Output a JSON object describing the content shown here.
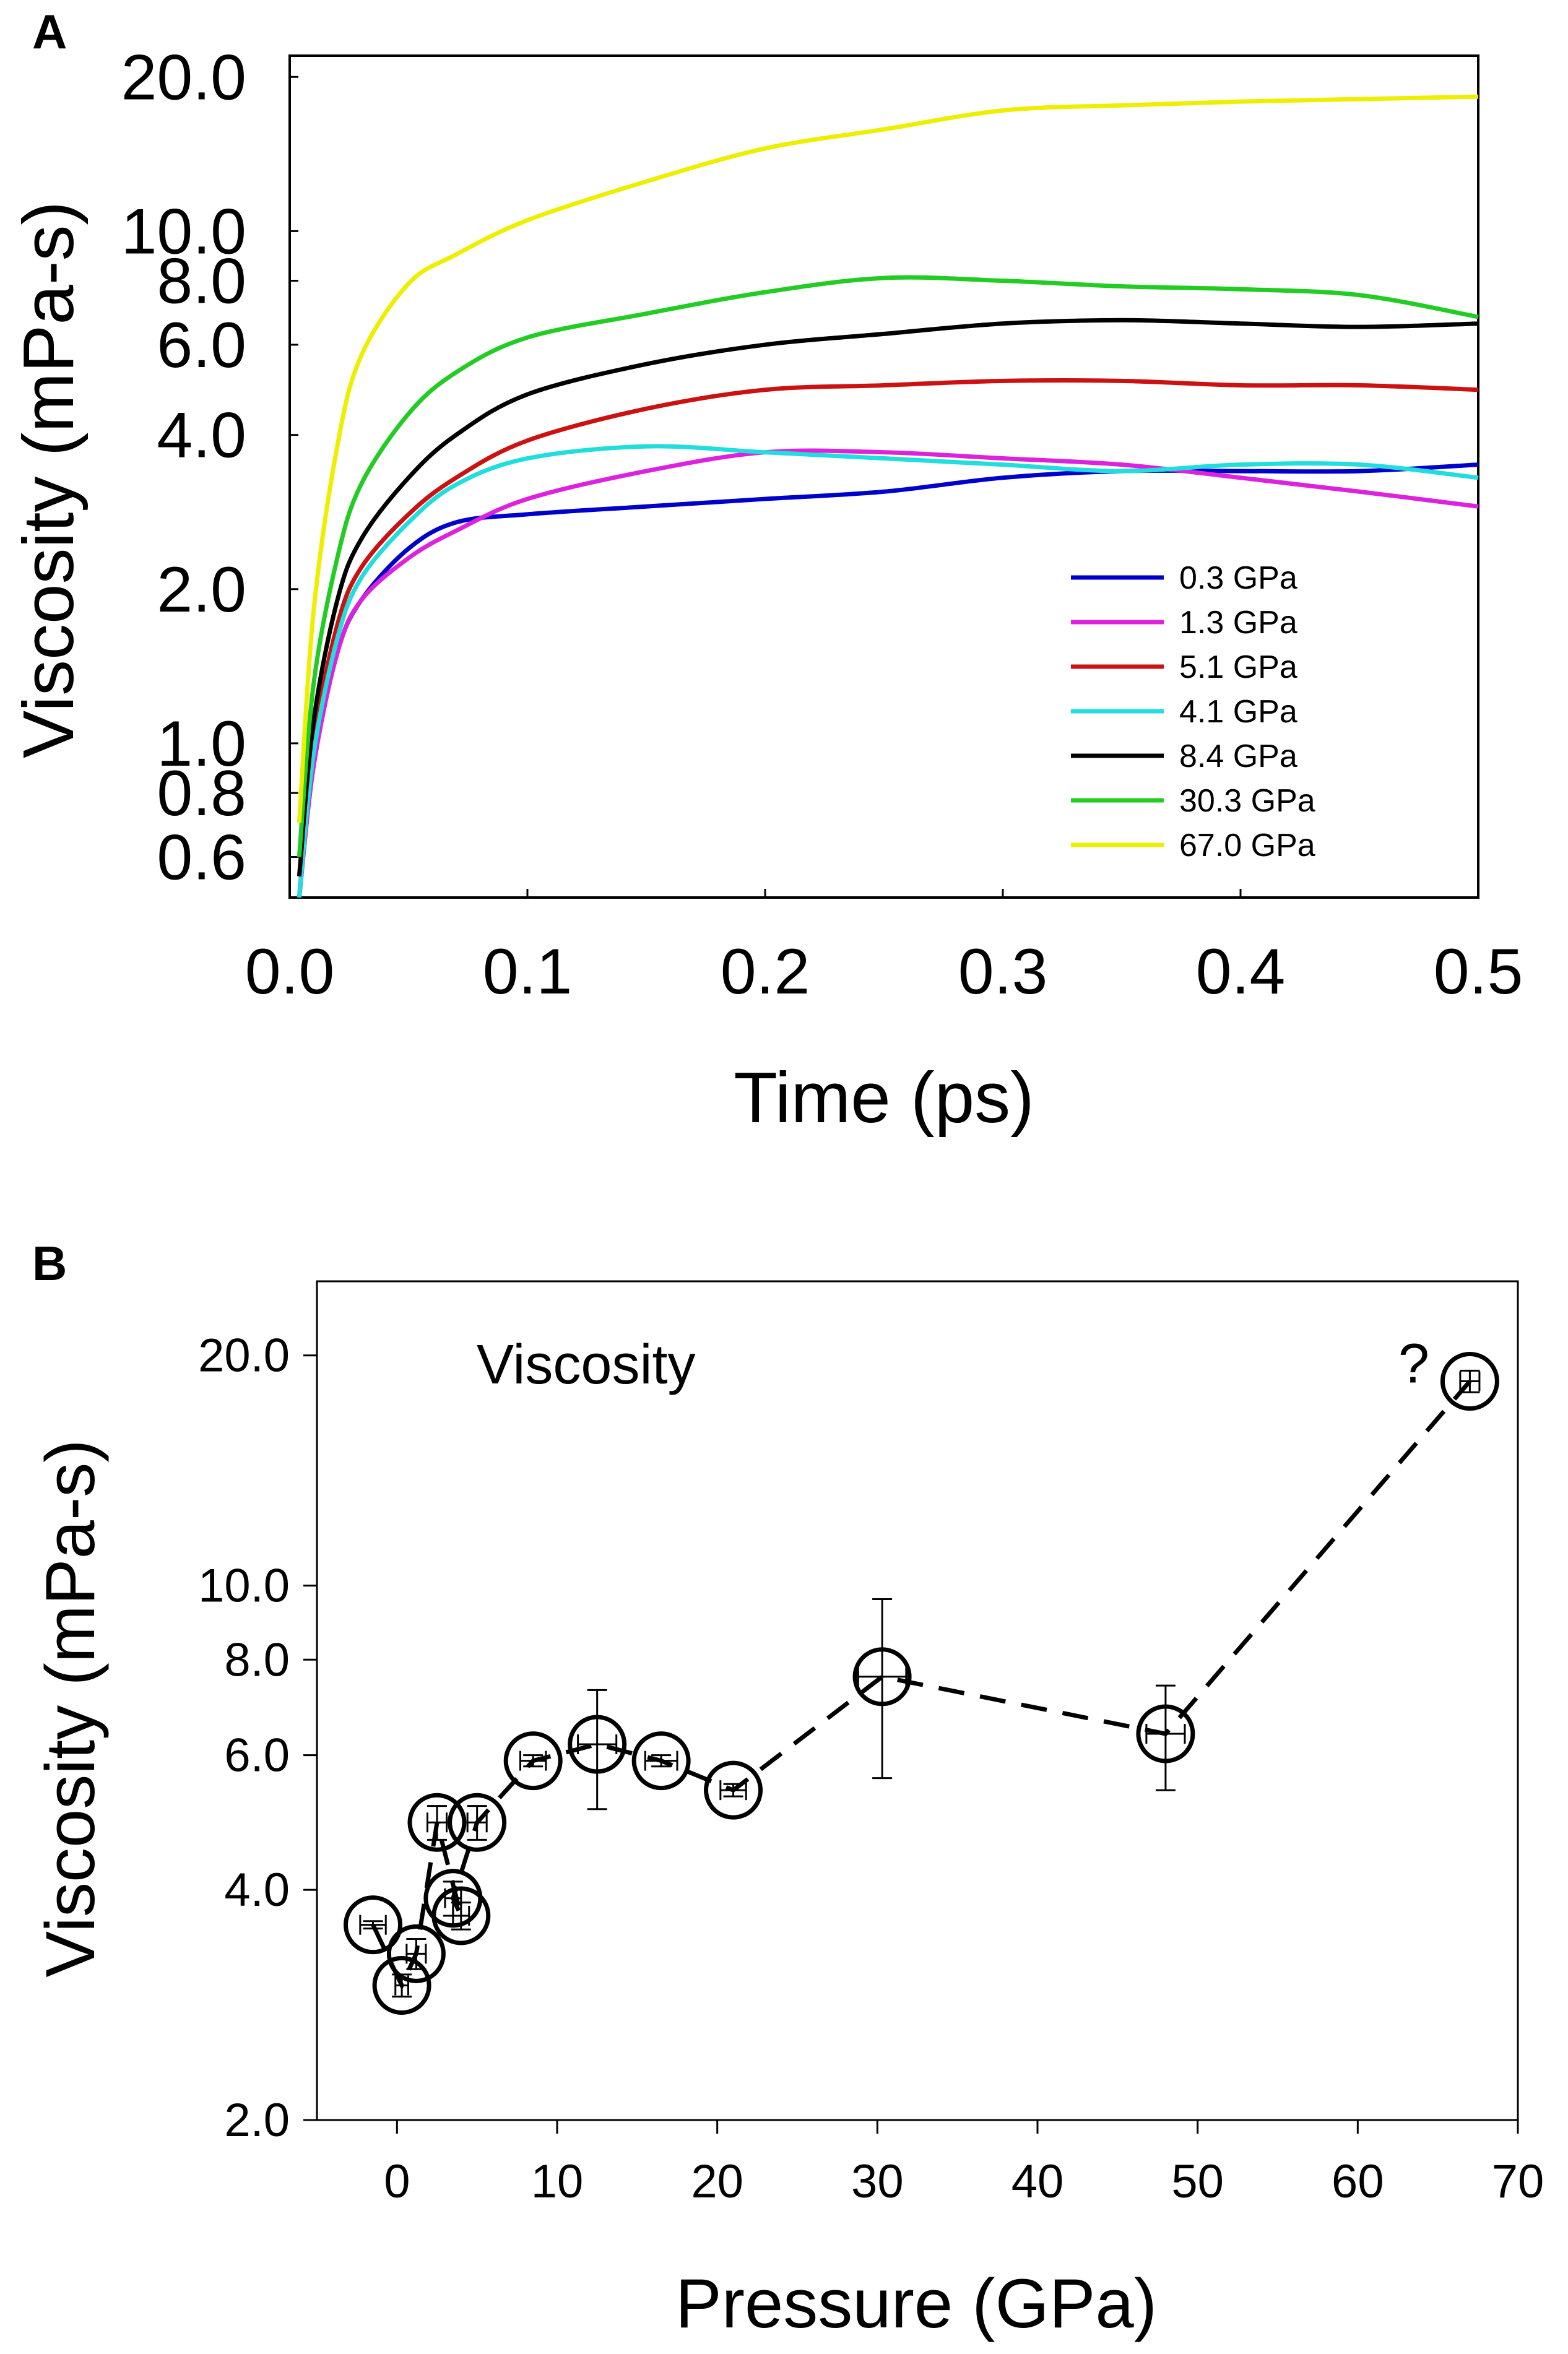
{
  "chart_data": [
    {
      "type": "line",
      "panel_label": "A",
      "xlabel": "Time (ps)",
      "ylabel": "Viscosity (mPa-s)",
      "xlim": [
        0,
        0.5
      ],
      "ylim": [
        0.5,
        22
      ],
      "yscale": "log",
      "xticks": [
        {
          "value": 0.0,
          "label": "0.0"
        },
        {
          "value": 0.1,
          "label": "0.1"
        },
        {
          "value": 0.2,
          "label": "0.2"
        },
        {
          "value": 0.3,
          "label": "0.3"
        },
        {
          "value": 0.4,
          "label": "0.4"
        },
        {
          "value": 0.5,
          "label": "0.5"
        }
      ],
      "yticks": [
        {
          "value": 0.6,
          "label": "0.6"
        },
        {
          "value": 0.8,
          "label": "0.8"
        },
        {
          "value": 1.0,
          "label": "1.0"
        },
        {
          "value": 2.0,
          "label": "2.0"
        },
        {
          "value": 4.0,
          "label": "4.0"
        },
        {
          "value": 6.0,
          "label": "6.0"
        },
        {
          "value": 8.0,
          "label": "8.0"
        },
        {
          "value": 10.0,
          "label": "10.0"
        },
        {
          "value": 20.0,
          "label": "20.0"
        }
      ],
      "legend_position": "bottom-right",
      "series": [
        {
          "name": "0.3 GPa",
          "color": "#0000cc",
          "x": [
            0.004,
            0.01,
            0.02,
            0.03,
            0.05,
            0.07,
            0.1,
            0.15,
            0.2,
            0.25,
            0.3,
            0.35,
            0.4,
            0.45,
            0.5
          ],
          "y": [
            0.5,
            0.9,
            1.5,
            1.9,
            2.4,
            2.7,
            2.8,
            2.9,
            3.0,
            3.1,
            3.3,
            3.4,
            3.4,
            3.4,
            3.5
          ]
        },
        {
          "name": "1.3 GPa",
          "color": "#dd22dd",
          "x": [
            0.004,
            0.01,
            0.02,
            0.03,
            0.05,
            0.07,
            0.1,
            0.15,
            0.2,
            0.25,
            0.3,
            0.35,
            0.4,
            0.45,
            0.5
          ],
          "y": [
            0.5,
            0.9,
            1.5,
            1.9,
            2.3,
            2.6,
            3.0,
            3.4,
            3.7,
            3.7,
            3.6,
            3.5,
            3.3,
            3.1,
            2.9
          ]
        },
        {
          "name": "5.1 GPa",
          "color": "#cc1111",
          "x": [
            0.004,
            0.01,
            0.02,
            0.03,
            0.05,
            0.07,
            0.1,
            0.15,
            0.2,
            0.25,
            0.3,
            0.35,
            0.4,
            0.45,
            0.5
          ],
          "y": [
            0.5,
            1.0,
            1.7,
            2.2,
            2.8,
            3.3,
            3.9,
            4.5,
            4.9,
            5.0,
            5.1,
            5.1,
            5.0,
            5.0,
            4.9
          ]
        },
        {
          "name": "4.1 GPa",
          "color": "#22dddd",
          "x": [
            0.004,
            0.01,
            0.02,
            0.03,
            0.05,
            0.07,
            0.1,
            0.15,
            0.2,
            0.25,
            0.3,
            0.35,
            0.4,
            0.45,
            0.5
          ],
          "y": [
            0.5,
            0.95,
            1.6,
            2.1,
            2.7,
            3.2,
            3.6,
            3.8,
            3.7,
            3.6,
            3.5,
            3.4,
            3.5,
            3.5,
            3.3
          ]
        },
        {
          "name": "8.4 GPa",
          "color": "#000000",
          "x": [
            0.004,
            0.01,
            0.02,
            0.03,
            0.05,
            0.07,
            0.1,
            0.15,
            0.2,
            0.25,
            0.3,
            0.35,
            0.4,
            0.45,
            0.5
          ],
          "y": [
            0.55,
            1.1,
            1.9,
            2.5,
            3.3,
            4.0,
            4.8,
            5.5,
            6.0,
            6.3,
            6.6,
            6.7,
            6.6,
            6.5,
            6.6
          ]
        },
        {
          "name": "30.3 GPa",
          "color": "#22cc22",
          "x": [
            0.004,
            0.01,
            0.02,
            0.03,
            0.05,
            0.07,
            0.1,
            0.15,
            0.2,
            0.25,
            0.3,
            0.35,
            0.4,
            0.45,
            0.5
          ],
          "y": [
            0.6,
            1.3,
            2.3,
            3.2,
            4.4,
            5.3,
            6.2,
            6.9,
            7.6,
            8.1,
            8.0,
            7.8,
            7.7,
            7.5,
            6.8
          ]
        },
        {
          "name": "67.0 GPa",
          "color": "#eeee00",
          "x": [
            0.004,
            0.01,
            0.02,
            0.03,
            0.05,
            0.07,
            0.1,
            0.15,
            0.2,
            0.25,
            0.3,
            0.35,
            0.4,
            0.45,
            0.5
          ],
          "y": [
            0.7,
            1.8,
            3.8,
            5.7,
            7.9,
            9.0,
            10.5,
            12.5,
            14.5,
            15.8,
            17.2,
            17.6,
            17.9,
            18.1,
            18.3
          ]
        }
      ]
    },
    {
      "type": "scatter",
      "panel_label": "B",
      "title": "Viscosity",
      "xlabel": "Pressure (GPa)",
      "ylabel": "Viscosity (mPa-s)",
      "xlim": [
        -5,
        70
      ],
      "ylim": [
        2.0,
        25
      ],
      "yscale": "log",
      "xticks": [
        {
          "value": 0,
          "label": "0"
        },
        {
          "value": 10,
          "label": "10"
        },
        {
          "value": 20,
          "label": "20"
        },
        {
          "value": 30,
          "label": "30"
        },
        {
          "value": 40,
          "label": "40"
        },
        {
          "value": 50,
          "label": "50"
        },
        {
          "value": 60,
          "label": "60"
        },
        {
          "value": 70,
          "label": "70"
        }
      ],
      "yticks": [
        {
          "value": 2.0,
          "label": "2.0"
        },
        {
          "value": 4.0,
          "label": "4.0"
        },
        {
          "value": 6.0,
          "label": "6.0"
        },
        {
          "value": 8.0,
          "label": "8.0"
        },
        {
          "value": 10.0,
          "label": "10.0"
        },
        {
          "value": 20.0,
          "label": "20.0"
        }
      ],
      "annotation": "?",
      "annotation_anchor": {
        "x": 63.5,
        "y": 19.5
      },
      "points": [
        {
          "x": -1.5,
          "y": 3.6,
          "yerr": 0.04,
          "xerr": 0.8
        },
        {
          "x": 1.2,
          "y": 3.3,
          "yerr": 0.15,
          "xerr": 0.6
        },
        {
          "x": 0.3,
          "y": 3.0,
          "yerr": 0.1,
          "xerr": 0.4
        },
        {
          "x": 2.5,
          "y": 4.9,
          "yerr": 0.25,
          "xerr": 0.6
        },
        {
          "x": 3.5,
          "y": 3.9,
          "yerr": 0.2,
          "xerr": 0.5
        },
        {
          "x": 4.0,
          "y": 3.7,
          "yerr": 0.15,
          "xerr": 0.5
        },
        {
          "x": 5.0,
          "y": 4.9,
          "yerr": 0.25,
          "xerr": 0.6
        },
        {
          "x": 8.5,
          "y": 5.9,
          "yerr": 0.1,
          "xerr": 0.8
        },
        {
          "x": 12.5,
          "y": 6.2,
          "yerr": 1.1,
          "xerr": 1.2
        },
        {
          "x": 16.5,
          "y": 5.9,
          "yerr": 0.1,
          "xerr": 1.0
        },
        {
          "x": 21.0,
          "y": 5.4,
          "yerr": 0.1,
          "xerr": 0.8
        },
        {
          "x": 30.3,
          "y": 7.6,
          "yerr": 2.0,
          "xerr": 1.5
        },
        {
          "x": 48.0,
          "y": 6.4,
          "yerr": 1.0,
          "xerr": 1.2
        },
        {
          "x": 67.0,
          "y": 18.5,
          "yerr": 0.6,
          "xerr": 0.6
        }
      ],
      "line_order": [
        0,
        2,
        1,
        3,
        5,
        4,
        6,
        7,
        8,
        9,
        10,
        11,
        12,
        13
      ]
    }
  ]
}
